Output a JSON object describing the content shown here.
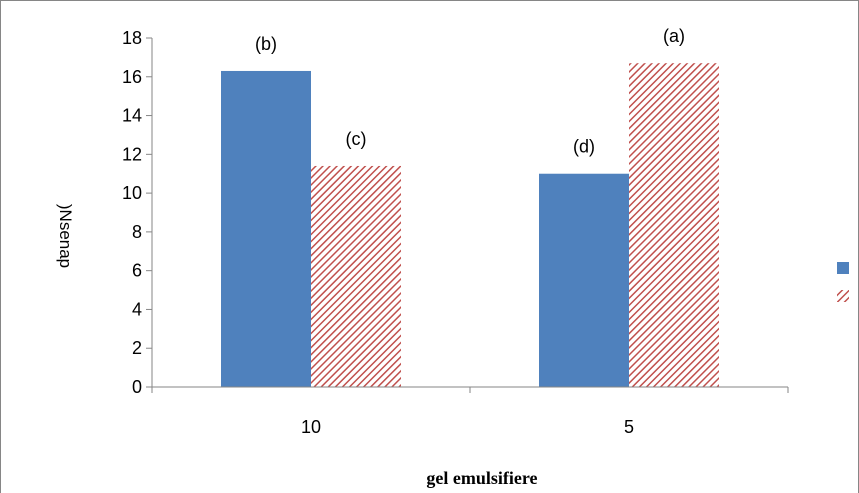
{
  "chart_data": {
    "type": "bar",
    "categories": [
      "10",
      "5"
    ],
    "series": [
      {
        "color": "#4f81bd",
        "pattern": "solid",
        "values": [
          16.3,
          11.0
        ],
        "labels": [
          "(b)",
          "(d)"
        ]
      },
      {
        "color": "#c0504d",
        "pattern": "diagonal-hatch",
        "values": [
          11.4,
          16.7
        ],
        "labels": [
          "(c)",
          "(a)"
        ]
      }
    ],
    "title": "",
    "xlabel": "gel emulsifiere",
    "ylabel": ")Nsenap",
    "ylim": [
      0,
      18
    ],
    "yticks": [
      0,
      2,
      4,
      6,
      8,
      10,
      12,
      14,
      16,
      18
    ],
    "legend": {
      "position": "right",
      "entries": [
        "",
        ""
      ]
    },
    "grid": false
  }
}
